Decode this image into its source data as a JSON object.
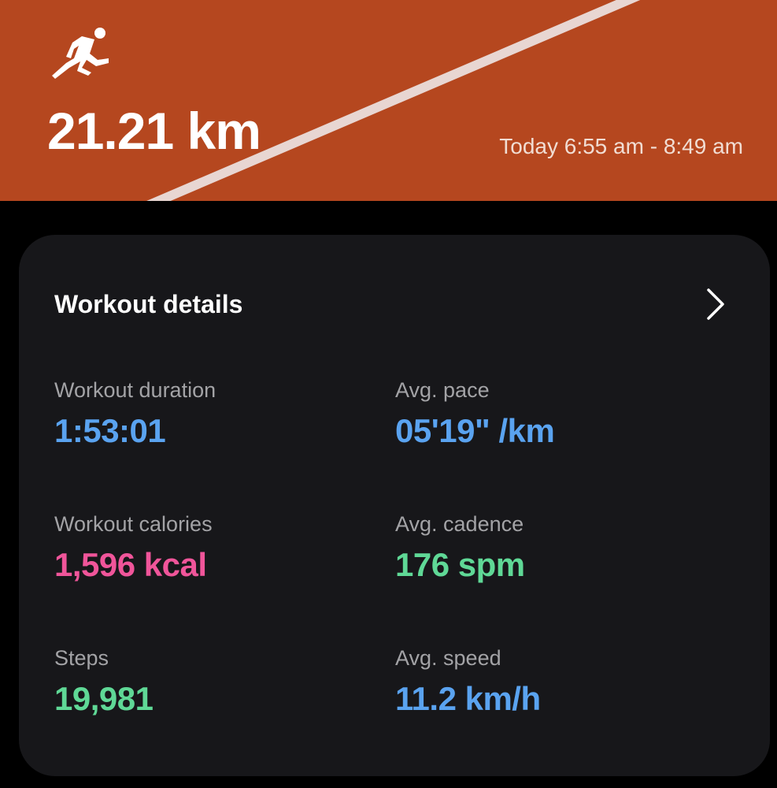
{
  "header": {
    "activity_icon": "running-person-icon",
    "distance": "21.21 km",
    "time_range": "Today 6:55 am - 8:49 am",
    "background_color": "#b5471f"
  },
  "card": {
    "title": "Workout details",
    "chevron_icon": "chevron-right-icon",
    "stats": [
      {
        "label": "Workout duration",
        "value": "1:53:01",
        "color": "#5aa3f0"
      },
      {
        "label": "Avg. pace",
        "value": "05'19\" /km",
        "color": "#5aa3f0"
      },
      {
        "label": "Workout calories",
        "value": "1,596 kcal",
        "color": "#f0559a"
      },
      {
        "label": "Avg. cadence",
        "value": "176 spm",
        "color": "#5fd896"
      },
      {
        "label": "Steps",
        "value": "19,981",
        "color": "#5fd896"
      },
      {
        "label": "Avg. speed",
        "value": "11.2 km/h",
        "color": "#5aa3f0"
      }
    ]
  }
}
